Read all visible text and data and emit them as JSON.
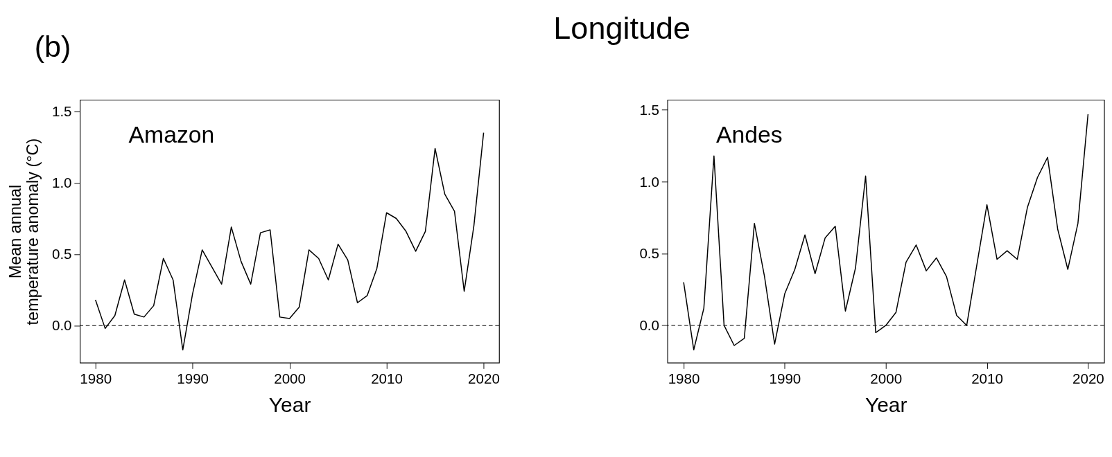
{
  "chart_data": [
    {
      "type": "line",
      "title": "Amazon",
      "xlabel": "Year",
      "ylabel": "Mean annual\ntemperature anomaly (°C)",
      "annotations": [
        "(b)"
      ],
      "x": [
        1980,
        1981,
        1982,
        1983,
        1984,
        1985,
        1986,
        1987,
        1988,
        1989,
        1990,
        1991,
        1992,
        1993,
        1994,
        1995,
        1996,
        1997,
        1998,
        1999,
        2000,
        2001,
        2002,
        2003,
        2004,
        2005,
        2006,
        2007,
        2008,
        2009,
        2010,
        2011,
        2012,
        2013,
        2014,
        2015,
        2016,
        2017,
        2018,
        2019,
        2020
      ],
      "series": [
        {
          "color": "#000000",
          "values": [
            0.18,
            -0.02,
            0.07,
            0.32,
            0.08,
            0.06,
            0.14,
            0.47,
            0.32,
            -0.17,
            0.22,
            0.53,
            0.41,
            0.29,
            0.69,
            0.45,
            0.29,
            0.65,
            0.67,
            0.06,
            0.05,
            0.13,
            0.53,
            0.47,
            0.32,
            0.57,
            0.46,
            0.16,
            0.21,
            0.4,
            0.79,
            0.75,
            0.66,
            0.52,
            0.66,
            1.24,
            0.92,
            0.8,
            0.24,
            0.7,
            1.35
          ]
        }
      ],
      "xlim": [
        1978.4,
        2021.6
      ],
      "ylim": [
        -0.26,
        1.58
      ],
      "xticks": [
        1980,
        1990,
        2000,
        2010,
        2020
      ],
      "yticks": [
        {
          "value": 0,
          "label": "0.0"
        },
        {
          "value": 0.5,
          "label": "0.5"
        },
        {
          "value": 1,
          "label": "1.0"
        },
        {
          "value": 1.5,
          "label": "1.5"
        }
      ],
      "ref_lines": [
        {
          "axis": "y",
          "value": 0,
          "color": "#000000",
          "line_style": "dashed"
        }
      ],
      "grid": false,
      "marker": "none",
      "line_style": "solid"
    },
    {
      "type": "line",
      "title": "Andes",
      "xlabel": "Year",
      "annotations": [
        "Longitude"
      ],
      "x": [
        1980,
        1981,
        1982,
        1983,
        1984,
        1985,
        1986,
        1987,
        1988,
        1989,
        1990,
        1991,
        1992,
        1993,
        1994,
        1995,
        1996,
        1997,
        1998,
        1999,
        2000,
        2001,
        2002,
        2003,
        2004,
        2005,
        2006,
        2007,
        2008,
        2009,
        2010,
        2011,
        2012,
        2013,
        2014,
        2015,
        2016,
        2017,
        2018,
        2019,
        2020
      ],
      "series": [
        {
          "color": "#000000",
          "values": [
            0.3,
            -0.17,
            0.12,
            1.18,
            0.0,
            -0.14,
            -0.09,
            0.71,
            0.34,
            -0.13,
            0.22,
            0.39,
            0.63,
            0.36,
            0.61,
            0.69,
            0.1,
            0.4,
            1.04,
            -0.05,
            0.0,
            0.09,
            0.44,
            0.56,
            0.38,
            0.47,
            0.34,
            0.07,
            0.0,
            0.42,
            0.84,
            0.46,
            0.52,
            0.46,
            0.82,
            1.03,
            1.17,
            0.67,
            0.39,
            0.71,
            1.47
          ]
        }
      ],
      "xlim": [
        1978.4,
        2021.6
      ],
      "ylim": [
        -0.26,
        1.57
      ],
      "xticks": [
        1980,
        1990,
        2000,
        2010,
        2020
      ],
      "yticks": [
        {
          "value": 0,
          "label": "0.0"
        },
        {
          "value": 0.5,
          "label": "0.5"
        },
        {
          "value": 1,
          "label": "1.0"
        },
        {
          "value": 1.5,
          "label": "1.5"
        }
      ],
      "ref_lines": [
        {
          "axis": "y",
          "value": 0,
          "color": "#000000",
          "line_style": "dashed"
        }
      ],
      "grid": false,
      "marker": "none",
      "line_style": "solid"
    }
  ]
}
